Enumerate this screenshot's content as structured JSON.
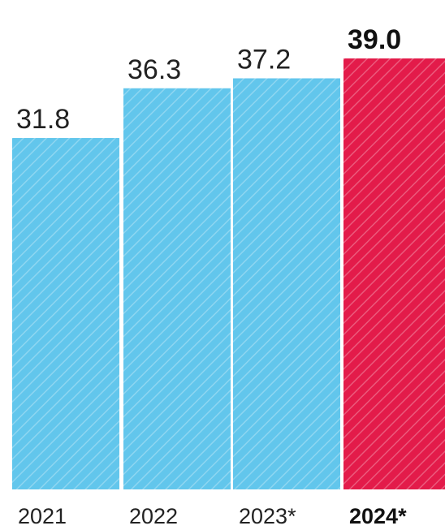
{
  "chart_data": {
    "type": "bar",
    "categories": [
      "2021",
      "2022",
      "2023*",
      "2024*"
    ],
    "values": [
      31.8,
      36.3,
      37.2,
      39.0
    ],
    "value_labels": [
      "31.8",
      "36.3",
      "37.2",
      "39.0"
    ],
    "highlight_index": 3,
    "colors": {
      "bar": "#62c6ec",
      "highlight": "#e31b4a",
      "hatch": "#ffffff"
    },
    "ylim": [
      0,
      39.0
    ],
    "grid": false,
    "legend": "none"
  }
}
